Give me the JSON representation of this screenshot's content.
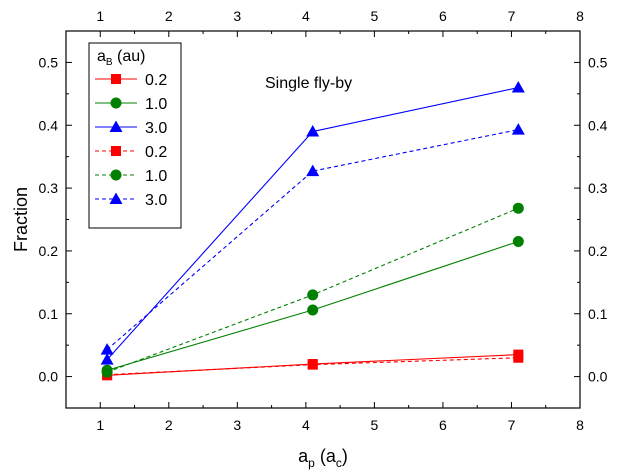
{
  "chart_data": {
    "type": "line",
    "title": "",
    "annotation": "Single fly-by",
    "xlabel": {
      "main": "a",
      "sub": "p",
      "unit": "(a",
      "unit_sub": "c",
      "close": ")"
    },
    "ylabel": "Fraction",
    "xlim": [
      0.5,
      8
    ],
    "ylim": [
      -0.05,
      0.55
    ],
    "xticks": [
      1,
      2,
      3,
      4,
      5,
      6,
      7,
      8
    ],
    "yticks": [
      0.0,
      0.1,
      0.2,
      0.3,
      0.4,
      0.5
    ],
    "ytick_labels": [
      "0.0",
      "0.1",
      "0.2",
      "0.3",
      "0.4",
      "0.5"
    ],
    "legend": {
      "title_main": "a",
      "title_sub": "B",
      "title_rest": " (au)",
      "position": "top-left"
    },
    "series": [
      {
        "name": "0.2",
        "color": "#ff0000",
        "marker": "square",
        "dashed": false,
        "x": [
          1.1,
          4.1,
          7.1
        ],
        "y": [
          0.002,
          0.02,
          0.035
        ]
      },
      {
        "name": "1.0",
        "color": "#008000",
        "marker": "circle",
        "dashed": false,
        "x": [
          1.1,
          4.1,
          7.1
        ],
        "y": [
          0.01,
          0.106,
          0.215
        ]
      },
      {
        "name": "3.0",
        "color": "#0000ff",
        "marker": "triangle",
        "dashed": false,
        "x": [
          1.1,
          4.1,
          7.1
        ],
        "y": [
          0.027,
          0.39,
          0.46
        ]
      },
      {
        "name": "0.2",
        "color": "#ff0000",
        "marker": "square",
        "dashed": true,
        "x": [
          1.1,
          4.1,
          7.1
        ],
        "y": [
          0.003,
          0.019,
          0.03
        ]
      },
      {
        "name": "1.0",
        "color": "#008000",
        "marker": "circle",
        "dashed": true,
        "x": [
          1.1,
          4.1,
          7.1
        ],
        "y": [
          0.007,
          0.13,
          0.268
        ]
      },
      {
        "name": "3.0",
        "color": "#0000ff",
        "marker": "triangle",
        "dashed": true,
        "x": [
          1.1,
          4.1,
          7.1
        ],
        "y": [
          0.043,
          0.327,
          0.393
        ]
      }
    ]
  }
}
